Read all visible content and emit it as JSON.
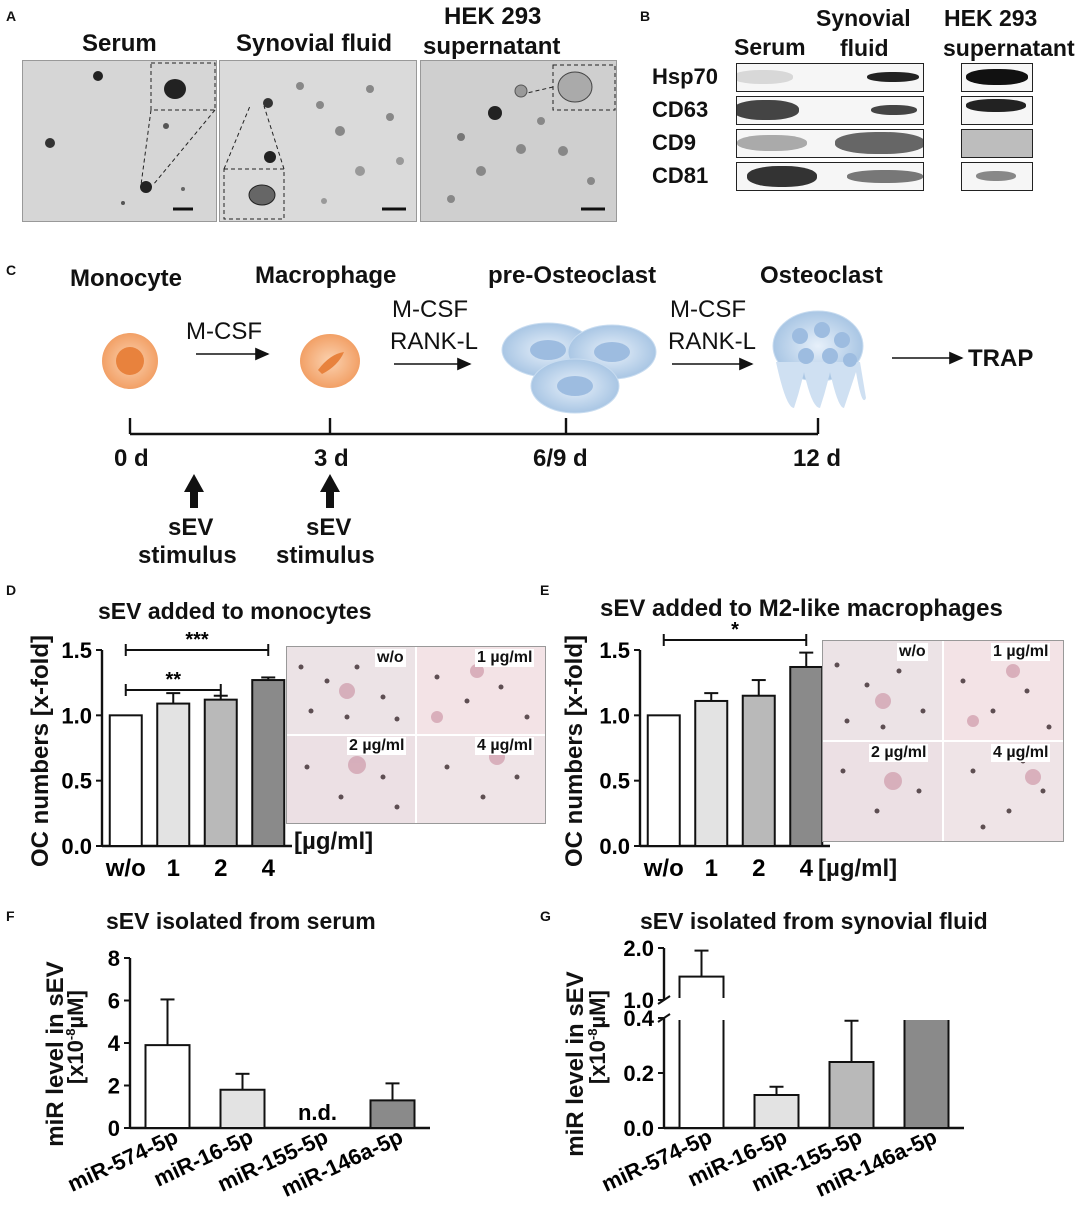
{
  "panels": {
    "a": "A",
    "b": "B",
    "c": "C",
    "d": "D",
    "e": "E",
    "f": "F",
    "g": "G"
  },
  "panel_a": {
    "titles": [
      "Serum",
      "Synovial fluid",
      "HEK 293",
      "supernatant"
    ]
  },
  "panel_b": {
    "col_serum": "Serum",
    "col_syn_1": "Synovial",
    "col_syn_2": "fluid",
    "col_hek_1": "HEK 293",
    "col_hek_2": "supernatant",
    "rows": [
      "Hsp70",
      "CD63",
      "CD9",
      "CD81"
    ]
  },
  "panel_c": {
    "stages": [
      "Monocyte",
      "Macrophage",
      "pre-Osteoclast",
      "Osteoclast"
    ],
    "factor_1": "M-CSF",
    "factor_2a": "M-CSF",
    "factor_2b": "RANK-L",
    "factor_3a": "M-CSF",
    "factor_3b": "RANK-L",
    "readout": "TRAP",
    "timepoints": [
      "0 d",
      "3 d",
      "6/9 d",
      "12 d"
    ],
    "stim_1a": "sEV",
    "stim_1b": "stimulus",
    "stim_2a": "sEV",
    "stim_2b": "stimulus"
  },
  "micrograph_labels": {
    "d": [
      "w/o",
      "1 µg/ml",
      "2 µg/ml",
      "4 µg/ml"
    ],
    "e": [
      "w/o",
      "1 µg/ml",
      "2 µg/ml",
      "4 µg/ml"
    ]
  },
  "colors": {
    "white_bar": "#ffffff",
    "light_bar": "#e3e3e3",
    "mid_bar": "#b9b9b9",
    "dark_bar": "#8a8a8a",
    "cell_orange": "#f2a066",
    "cell_blue": "#b9d3ec"
  },
  "chart_data": [
    {
      "id": "D",
      "type": "bar",
      "title": "sEV added to monocytes",
      "ylabel": "OC numbers [x-fold]",
      "xlabel": "[µg/ml]",
      "categories": [
        "w/o",
        "1",
        "2",
        "4"
      ],
      "values": [
        1.0,
        1.09,
        1.12,
        1.27
      ],
      "errors": [
        0.0,
        0.08,
        0.03,
        0.02
      ],
      "ylim": [
        0,
        1.5
      ],
      "yticks": [
        "0.0",
        "0.5",
        "1.0",
        "1.5"
      ],
      "significance": [
        {
          "from": "w/o",
          "to": "4",
          "label": "***"
        },
        {
          "from": "w/o",
          "to": "2",
          "label": "**"
        }
      ]
    },
    {
      "id": "E",
      "type": "bar",
      "title": "sEV added to M2-like macrophages",
      "ylabel": "OC numbers [x-fold]",
      "xlabel": "[µg/ml]",
      "categories": [
        "w/o",
        "1",
        "2",
        "4"
      ],
      "values": [
        1.0,
        1.11,
        1.15,
        1.37
      ],
      "errors": [
        0.0,
        0.06,
        0.12,
        0.11
      ],
      "ylim": [
        0,
        1.5
      ],
      "yticks": [
        "0.0",
        "0.5",
        "1.0",
        "1.5"
      ],
      "significance": [
        {
          "from": "w/o",
          "to": "4",
          "label": "*"
        }
      ]
    },
    {
      "id": "F",
      "type": "bar",
      "title": "sEV isolated from serum",
      "ylabel_1": "miR level in sEV",
      "ylabel_2": "[x10",
      "ylabel_sup": "-8",
      "ylabel_3": "µM]",
      "categories": [
        "miR-574-5p",
        "miR-16-5p",
        "miR-155-5p",
        "miR-146a-5p"
      ],
      "values": [
        3.9,
        1.8,
        null,
        1.3
      ],
      "errors": [
        2.15,
        0.75,
        null,
        0.8
      ],
      "annotation": "n.d.",
      "ylim": [
        0,
        8
      ],
      "yticks": [
        "0",
        "2",
        "4",
        "6",
        "8"
      ]
    },
    {
      "id": "G",
      "type": "bar",
      "title": "sEV isolated from synovial fluid",
      "ylabel_1": "miR level in sEV",
      "ylabel_2": "[x10",
      "ylabel_sup": "-8",
      "ylabel_3": "µM]",
      "categories": [
        "miR-574-5p",
        "miR-16-5p",
        "miR-155-5p",
        "miR-146a-5p"
      ],
      "values": [
        1.45,
        0.12,
        0.24,
        0.55
      ],
      "errors": [
        0.5,
        0.03,
        0.15,
        0.0
      ],
      "axis_break": true,
      "ylim_lower": [
        0,
        0.4
      ],
      "ylim_upper": [
        1.0,
        2.0
      ],
      "yticks": [
        "0.0",
        "0.2",
        "0.4",
        "1.0",
        "2.0"
      ]
    }
  ]
}
